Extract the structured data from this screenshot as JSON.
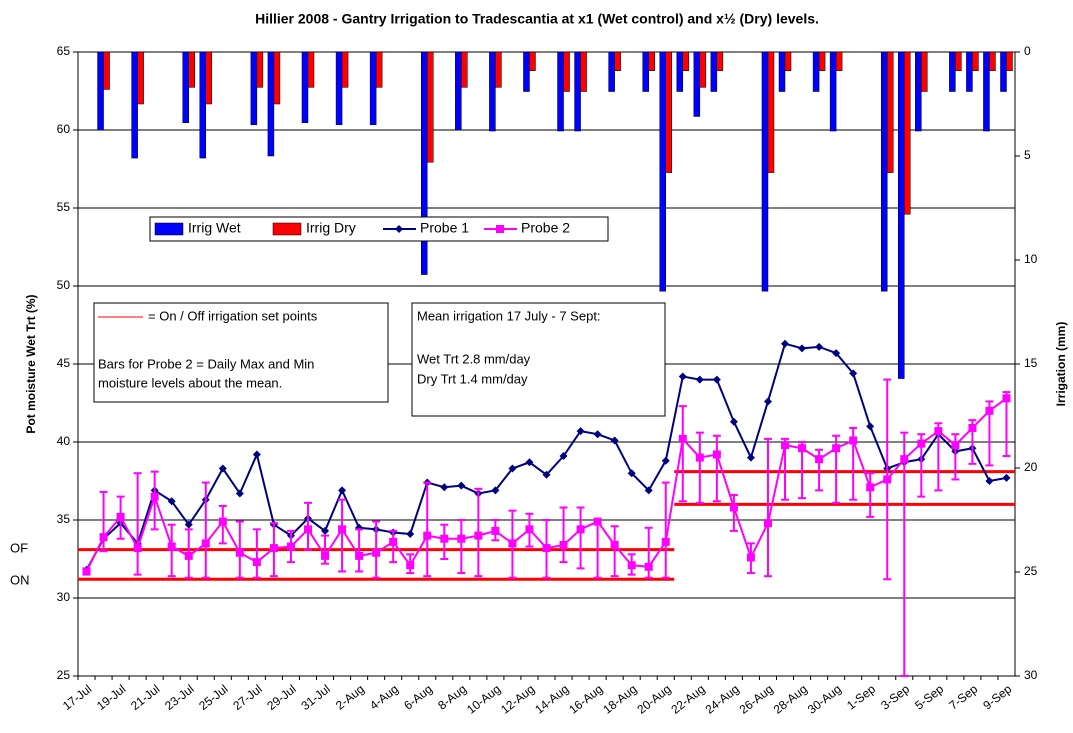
{
  "chart_data": {
    "type": "bar_line",
    "title": "Hillier 2008 - Gantry Irrigation to Tradescantia at x1 (Wet control) and x½ (Dry) levels.",
    "y_label": "Pot moisture Wet Trt (%)",
    "y2_label": "Irrigation (mm)",
    "categories": [
      "17-Jul",
      null,
      "19-Jul",
      null,
      "21-Jul",
      null,
      "23-Jul",
      null,
      "25-Jul",
      null,
      "27-Jul",
      null,
      "29-Jul",
      null,
      "31-Jul",
      null,
      "2-Aug",
      null,
      "4-Aug",
      null,
      "6-Aug",
      null,
      "8-Aug",
      null,
      "10-Aug",
      null,
      "12-Aug",
      null,
      "14-Aug",
      null,
      "16-Aug",
      null,
      "18-Aug",
      null,
      "20-Aug",
      null,
      "22-Aug",
      null,
      "24-Aug",
      null,
      "26-Aug",
      null,
      "28-Aug",
      null,
      "30-Aug",
      null,
      "1-Sep",
      null,
      "3-Sep",
      null,
      "5-Sep",
      null,
      "7-Sep",
      null,
      "9-Sep"
    ],
    "ylim": [
      25,
      65
    ],
    "yticks": [
      25,
      30,
      35,
      40,
      45,
      50,
      55,
      60,
      65
    ],
    "y2lim": [
      30,
      0
    ],
    "y2ticks": [
      0,
      5,
      10,
      15,
      20,
      25,
      30
    ],
    "grid": true,
    "series": [
      {
        "name": "Irrig Wet",
        "kind": "bar",
        "axis": "y2",
        "color": "#0000ff",
        "values": [
          null,
          3.75,
          null,
          5.1,
          null,
          null,
          3.4,
          5.1,
          null,
          null,
          3.5,
          5.0,
          null,
          3.4,
          null,
          3.5,
          null,
          3.5,
          null,
          null,
          10.7,
          null,
          3.75,
          null,
          3.8,
          null,
          1.9,
          null,
          3.8,
          3.8,
          null,
          1.9,
          null,
          1.9,
          11.5,
          1.9,
          3.1,
          1.9,
          null,
          null,
          11.5,
          1.9,
          null,
          1.9,
          3.8,
          null,
          null,
          11.5,
          15.7,
          3.8,
          null,
          1.9,
          1.9,
          3.8,
          1.9
        ]
      },
      {
        "name": "Irrig Dry",
        "kind": "bar",
        "axis": "y2",
        "color": "#ff0000",
        "values": [
          null,
          1.8,
          null,
          2.5,
          null,
          null,
          1.7,
          2.5,
          null,
          null,
          1.7,
          2.5,
          null,
          1.7,
          null,
          1.7,
          null,
          1.7,
          null,
          null,
          5.3,
          null,
          1.7,
          null,
          1.7,
          null,
          0.9,
          null,
          1.9,
          1.9,
          null,
          0.9,
          null,
          0.9,
          5.8,
          0.9,
          1.7,
          0.9,
          null,
          null,
          5.8,
          0.9,
          null,
          0.9,
          0.9,
          null,
          null,
          5.8,
          7.8,
          1.9,
          null,
          0.9,
          0.9,
          0.9,
          0.9
        ]
      },
      {
        "name": "Probe 1",
        "kind": "line",
        "marker": "diamond",
        "color": "#000080",
        "values": [
          31.8,
          33.8,
          34.8,
          33.5,
          36.9,
          36.2,
          34.7,
          36.3,
          38.3,
          36.7,
          39.2,
          34.7,
          34.0,
          35.1,
          34.3,
          36.9,
          34.5,
          34.4,
          34.2,
          34.1,
          37.4,
          37.1,
          37.2,
          36.7,
          36.9,
          38.3,
          38.7,
          37.9,
          39.1,
          40.7,
          40.5,
          40.1,
          38.0,
          36.9,
          38.8,
          44.2,
          44.0,
          44.0,
          41.3,
          39.0,
          42.6,
          46.3,
          46.0,
          46.1,
          45.7,
          44.4,
          41.0,
          38.3,
          38.7,
          38.9,
          40.5,
          39.4,
          39.6,
          37.5,
          37.7
        ]
      },
      {
        "name": "Probe 2",
        "kind": "line",
        "marker": "square",
        "color": "#ff00ff",
        "values": [
          31.7,
          33.9,
          35.2,
          33.2,
          36.5,
          33.3,
          32.7,
          33.5,
          34.9,
          32.9,
          32.3,
          33.2,
          33.3,
          34.4,
          32.7,
          34.4,
          32.7,
          32.9,
          33.6,
          32.1,
          34.0,
          33.8,
          33.8,
          34.0,
          34.3,
          33.5,
          34.4,
          33.2,
          33.4,
          34.4,
          34.9,
          33.4,
          32.1,
          32.0,
          33.6,
          40.2,
          39.0,
          39.2,
          35.8,
          32.6,
          34.8,
          39.8,
          39.6,
          38.9,
          39.6,
          40.1,
          37.1,
          37.6,
          38.9,
          39.9,
          40.7,
          39.8,
          40.9,
          42.0,
          42.8
        ],
        "max": [
          31.9,
          36.8,
          36.5,
          38.0,
          38.1,
          34.7,
          34.4,
          37.4,
          35.9,
          34.9,
          34.4,
          34.8,
          34.3,
          36.1,
          34.0,
          36.3,
          34.4,
          34.9,
          34.3,
          32.8,
          37.4,
          34.7,
          35.0,
          37.0,
          35.0,
          35.6,
          35.4,
          35.0,
          35.8,
          35.8,
          35.0,
          34.6,
          32.8,
          34.5,
          37.4,
          42.3,
          40.6,
          40.4,
          36.6,
          33.5,
          40.2,
          40.2,
          40.0,
          39.5,
          40.4,
          40.9,
          38.0,
          44.0,
          40.6,
          40.5,
          41.2,
          40.5,
          41.4,
          42.6,
          43.2
        ],
        "min": [
          31.5,
          33.0,
          33.8,
          31.5,
          34.4,
          31.4,
          31.3,
          31.3,
          33.5,
          31.3,
          31.3,
          31.4,
          32.3,
          33.1,
          32.2,
          31.7,
          31.7,
          31.3,
          32.3,
          31.6,
          31.4,
          32.5,
          31.6,
          31.4,
          33.7,
          31.3,
          33.3,
          31.3,
          32.3,
          31.9,
          31.3,
          31.4,
          31.5,
          31.3,
          31.3,
          36.2,
          36.1,
          36.2,
          34.3,
          31.6,
          31.4,
          36.3,
          36.4,
          36.9,
          36.1,
          36.3,
          35.2,
          31.2,
          25.0,
          36.5,
          36.9,
          37.6,
          38.6,
          38.5,
          39.1
        ]
      }
    ],
    "setpoints": [
      {
        "span": [
          0,
          34
        ],
        "values": [
          33.1,
          31.2
        ]
      },
      {
        "span": [
          35,
          54
        ],
        "values": [
          38.1,
          36.0
        ]
      }
    ],
    "setpoint_color": "#ff0000",
    "setpoint_labels": [
      "OF",
      "ON"
    ],
    "annotations": [
      "= On / Off irrigation set points",
      "Bars for Probe 2 = Daily Max and Min",
      "moisture levels about the mean.",
      "Mean irrigation 17 July - 7 Sept:",
      "Wet Trt 2.8 mm/day",
      "Dry Trt 1.4 mm/day"
    ]
  }
}
